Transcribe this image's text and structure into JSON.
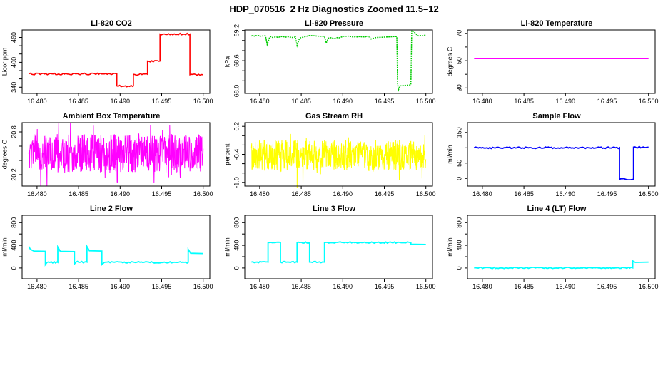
{
  "main_title": "HDP_070516  2 Hz Diagnostics Zoomed 11.5–12",
  "chart_data": [
    {
      "type": "line",
      "title": "Li-820 CO2",
      "ylabel": "Licor ppm",
      "color": "#FF0000",
      "xlim": [
        16.4782,
        16.5008
      ],
      "ylim": [
        325,
        478
      ],
      "xticks": [
        {
          "v": 16.48,
          "l": "16.480"
        },
        {
          "v": 16.485,
          "l": "16.485"
        },
        {
          "v": 16.49,
          "l": "16.490"
        },
        {
          "v": 16.495,
          "l": "16.495"
        },
        {
          "v": 16.5,
          "l": "16.500"
        }
      ],
      "yticks": [
        {
          "v": 340,
          "l": "340"
        },
        {
          "v": 360
        },
        {
          "v": 380
        },
        {
          "v": 400,
          "l": "400"
        },
        {
          "v": 420
        },
        {
          "v": 440
        },
        {
          "v": 460,
          "l": "460"
        }
      ],
      "series": {
        "type": "steps",
        "jitter": 1.2,
        "lw": 1.6,
        "points": [
          [
            16.479,
            372
          ],
          [
            16.4896,
            372
          ],
          [
            16.4896,
            343
          ],
          [
            16.4916,
            343
          ],
          [
            16.4916,
            371
          ],
          [
            16.4933,
            371
          ],
          [
            16.4933,
            403
          ],
          [
            16.4948,
            403
          ],
          [
            16.4948,
            468
          ],
          [
            16.4984,
            468
          ],
          [
            16.4984,
            370
          ],
          [
            16.5,
            370
          ]
        ]
      }
    },
    {
      "type": "line",
      "title": "Li-820 Pressure",
      "ylabel": "kPa",
      "color": "#00CC00",
      "xlim": [
        16.4782,
        16.5008
      ],
      "ylim": [
        67.95,
        69.21
      ],
      "xticks": [
        {
          "v": 16.48,
          "l": "16.480"
        },
        {
          "v": 16.485,
          "l": "16.485"
        },
        {
          "v": 16.49,
          "l": "16.490"
        },
        {
          "v": 16.495,
          "l": "16.495"
        },
        {
          "v": 16.5,
          "l": "16.500"
        }
      ],
      "yticks": [
        {
          "v": 68.0,
          "l": "68.0"
        },
        {
          "v": 68.2
        },
        {
          "v": 68.4
        },
        {
          "v": 68.6,
          "l": "68.6"
        },
        {
          "v": 68.8
        },
        {
          "v": 69.0
        },
        {
          "v": 69.2,
          "l": "69.2"
        }
      ],
      "series": {
        "type": "steps",
        "jitter": 0.8,
        "lw": 1.5,
        "dash": "2 1.2",
        "points": [
          [
            16.479,
            69.09
          ],
          [
            16.4807,
            69.09
          ],
          [
            16.4809,
            68.92
          ],
          [
            16.4812,
            69.07
          ],
          [
            16.4843,
            69.07
          ],
          [
            16.4845,
            68.9
          ],
          [
            16.4848,
            69.05
          ],
          [
            16.4855,
            69.08
          ],
          [
            16.486,
            69.1
          ],
          [
            16.4878,
            69.08
          ],
          [
            16.488,
            68.95
          ],
          [
            16.4883,
            69.05
          ],
          [
            16.4895,
            69.05
          ],
          [
            16.49,
            69.08
          ],
          [
            16.4932,
            69.08
          ],
          [
            16.4934,
            69.03
          ],
          [
            16.494,
            69.06
          ],
          [
            16.4964,
            69.08
          ],
          [
            16.4965,
            69.08
          ],
          [
            16.4966,
            68.15
          ],
          [
            16.4967,
            68.02
          ],
          [
            16.4969,
            68.1
          ],
          [
            16.4982,
            68.12
          ],
          [
            16.4983,
            69.2
          ],
          [
            16.4987,
            69.15
          ],
          [
            16.499,
            69.1
          ],
          [
            16.5,
            69.1
          ]
        ]
      }
    },
    {
      "type": "line",
      "title": "Li-820 Temperature",
      "ylabel": "degrees C",
      "color": "#FF00FF",
      "xlim": [
        16.4782,
        16.5008
      ],
      "ylim": [
        26,
        72.5
      ],
      "xticks": [
        {
          "v": 16.48,
          "l": "16.480"
        },
        {
          "v": 16.485,
          "l": "16.485"
        },
        {
          "v": 16.49,
          "l": "16.490"
        },
        {
          "v": 16.495,
          "l": "16.495"
        },
        {
          "v": 16.5,
          "l": "16.500"
        }
      ],
      "yticks": [
        {
          "v": 30,
          "l": "30"
        },
        {
          "v": 40
        },
        {
          "v": 50,
          "l": "50"
        },
        {
          "v": 60
        },
        {
          "v": 70,
          "l": "70"
        }
      ],
      "series": {
        "type": "steps",
        "jitter": 0,
        "lw": 1.5,
        "points": [
          [
            16.479,
            51.5
          ],
          [
            16.5,
            51.5
          ]
        ]
      }
    },
    {
      "type": "line",
      "title": "Ambient Box Temperature",
      "ylabel": "degrees C",
      "color": "#FF00FF",
      "xlim": [
        16.4782,
        16.5008
      ],
      "ylim": [
        20.04,
        20.93
      ],
      "xticks": [
        {
          "v": 16.48,
          "l": "16.480"
        },
        {
          "v": 16.485,
          "l": "16.485"
        },
        {
          "v": 16.49,
          "l": "16.490"
        },
        {
          "v": 16.495,
          "l": "16.495"
        },
        {
          "v": 16.5,
          "l": "16.500"
        }
      ],
      "yticks": [
        {
          "v": 20.2,
          "l": "20.2"
        },
        {
          "v": 20.4
        },
        {
          "v": 20.6
        },
        {
          "v": 20.8,
          "l": "20.8"
        }
      ],
      "series": {
        "type": "noise",
        "xrange": [
          16.479,
          16.5
        ],
        "n": 700,
        "mean": 20.5,
        "amp": 0.27,
        "spike_prob": 0.06,
        "spike_scale": 1.8,
        "lw": 1
      }
    },
    {
      "type": "line",
      "title": "Gas Stream RH",
      "ylabel": "percent",
      "color": "#FFFF00",
      "xlim": [
        16.4782,
        16.5008
      ],
      "ylim": [
        -1.08,
        0.28
      ],
      "xticks": [
        {
          "v": 16.48,
          "l": "16.480"
        },
        {
          "v": 16.485,
          "l": "16.485"
        },
        {
          "v": 16.49,
          "l": "16.490"
        },
        {
          "v": 16.495,
          "l": "16.495"
        },
        {
          "v": 16.5,
          "l": "16.500"
        }
      ],
      "yticks": [
        {
          "v": -1.0,
          "l": "-1.0"
        },
        {
          "v": -0.8
        },
        {
          "v": -0.6
        },
        {
          "v": -0.4,
          "l": "-0.4"
        },
        {
          "v": -0.2
        },
        {
          "v": 0.0
        },
        {
          "v": 0.2,
          "l": "0.2"
        }
      ],
      "series": {
        "type": "noise",
        "xrange": [
          16.479,
          16.5
        ],
        "n": 700,
        "mean": -0.42,
        "amp": 0.33,
        "spike_prob": 0.05,
        "spike_scale": 1.7,
        "lw": 1,
        "outliers": [
          [
            16.4845,
            -1.12
          ],
          [
            16.4852,
            -1.02
          ],
          [
            16.4968,
            -0.95
          ]
        ]
      }
    },
    {
      "type": "line",
      "title": "Sample Flow",
      "ylabel": "ml/min",
      "color": "#0000FF",
      "xlim": [
        16.4782,
        16.5008
      ],
      "ylim": [
        -25,
        182
      ],
      "xticks": [
        {
          "v": 16.48,
          "l": "16.480"
        },
        {
          "v": 16.485,
          "l": "16.485"
        },
        {
          "v": 16.49,
          "l": "16.490"
        },
        {
          "v": 16.495,
          "l": "16.495"
        },
        {
          "v": 16.5,
          "l": "16.500"
        }
      ],
      "yticks": [
        {
          "v": 0,
          "l": "0"
        },
        {
          "v": 50,
          "l": "50"
        },
        {
          "v": 100
        },
        {
          "v": 150,
          "l": "150"
        }
      ],
      "series": {
        "type": "steps",
        "jitter": 1.1,
        "lw": 1.8,
        "points": [
          [
            16.479,
            100
          ],
          [
            16.4965,
            100
          ],
          [
            16.4965,
            -3
          ],
          [
            16.4982,
            -3
          ],
          [
            16.4982,
            102
          ],
          [
            16.5,
            102
          ]
        ]
      }
    },
    {
      "type": "line",
      "title": "Line 2 Flow",
      "ylabel": "ml/min",
      "color": "#00FFFF",
      "xlim": [
        16.4782,
        16.5008
      ],
      "ylim": [
        -190,
        930
      ],
      "xticks": [
        {
          "v": 16.48,
          "l": "16.480"
        },
        {
          "v": 16.485,
          "l": "16.485"
        },
        {
          "v": 16.49,
          "l": "16.490"
        },
        {
          "v": 16.495,
          "l": "16.495"
        },
        {
          "v": 16.5,
          "l": "16.500"
        }
      ],
      "yticks": [
        {
          "v": 0,
          "l": "0"
        },
        {
          "v": 200
        },
        {
          "v": 400,
          "l": "400"
        },
        {
          "v": 600
        },
        {
          "v": 800,
          "l": "800"
        }
      ],
      "series": {
        "type": "steps",
        "jitter": 1.0,
        "lw": 1.8,
        "points": [
          [
            16.479,
            380
          ],
          [
            16.4792,
            330
          ],
          [
            16.4796,
            300
          ],
          [
            16.481,
            295
          ],
          [
            16.481,
            60
          ],
          [
            16.4812,
            100
          ],
          [
            16.4825,
            100
          ],
          [
            16.4825,
            370
          ],
          [
            16.4828,
            295
          ],
          [
            16.4845,
            290
          ],
          [
            16.4845,
            70
          ],
          [
            16.4847,
            105
          ],
          [
            16.486,
            105
          ],
          [
            16.486,
            380
          ],
          [
            16.4863,
            305
          ],
          [
            16.4878,
            300
          ],
          [
            16.4878,
            60
          ],
          [
            16.4881,
            100
          ],
          [
            16.4982,
            100
          ],
          [
            16.4982,
            330
          ],
          [
            16.4985,
            260
          ],
          [
            16.5,
            255
          ]
        ]
      }
    },
    {
      "type": "line",
      "title": "Line 3 Flow",
      "ylabel": "ml/min",
      "color": "#00FFFF",
      "xlim": [
        16.4782,
        16.5008
      ],
      "ylim": [
        -190,
        930
      ],
      "xticks": [
        {
          "v": 16.48,
          "l": "16.480"
        },
        {
          "v": 16.485,
          "l": "16.485"
        },
        {
          "v": 16.49,
          "l": "16.490"
        },
        {
          "v": 16.495,
          "l": "16.495"
        },
        {
          "v": 16.5,
          "l": "16.500"
        }
      ],
      "yticks": [
        {
          "v": 0,
          "l": "0"
        },
        {
          "v": 200
        },
        {
          "v": 400,
          "l": "400"
        },
        {
          "v": 600
        },
        {
          "v": 800,
          "l": "800"
        }
      ],
      "series": {
        "type": "steps",
        "jitter": 1.0,
        "lw": 1.8,
        "points": [
          [
            16.479,
            105
          ],
          [
            16.481,
            105
          ],
          [
            16.481,
            450
          ],
          [
            16.4825,
            450
          ],
          [
            16.4825,
            105
          ],
          [
            16.4845,
            105
          ],
          [
            16.4845,
            450
          ],
          [
            16.486,
            450
          ],
          [
            16.486,
            105
          ],
          [
            16.4878,
            105
          ],
          [
            16.4878,
            450
          ],
          [
            16.4982,
            450
          ],
          [
            16.4982,
            420
          ],
          [
            16.5,
            415
          ]
        ]
      }
    },
    {
      "type": "line",
      "title": "Line 4 (LT) Flow",
      "ylabel": "ml/min",
      "color": "#00FFFF",
      "xlim": [
        16.4782,
        16.5008
      ],
      "ylim": [
        -190,
        930
      ],
      "xticks": [
        {
          "v": 16.48,
          "l": "16.480"
        },
        {
          "v": 16.485,
          "l": "16.485"
        },
        {
          "v": 16.49,
          "l": "16.490"
        },
        {
          "v": 16.495,
          "l": "16.495"
        },
        {
          "v": 16.5,
          "l": "16.500"
        }
      ],
      "yticks": [
        {
          "v": 0,
          "l": "0"
        },
        {
          "v": 200
        },
        {
          "v": 400,
          "l": "400"
        },
        {
          "v": 600
        },
        {
          "v": 800,
          "l": "800"
        }
      ],
      "series": {
        "type": "steps",
        "jitter": 0.9,
        "lw": 1.8,
        "points": [
          [
            16.479,
            2
          ],
          [
            16.4981,
            2
          ],
          [
            16.4981,
            125
          ],
          [
            16.4984,
            100
          ],
          [
            16.5,
            105
          ]
        ]
      }
    }
  ]
}
